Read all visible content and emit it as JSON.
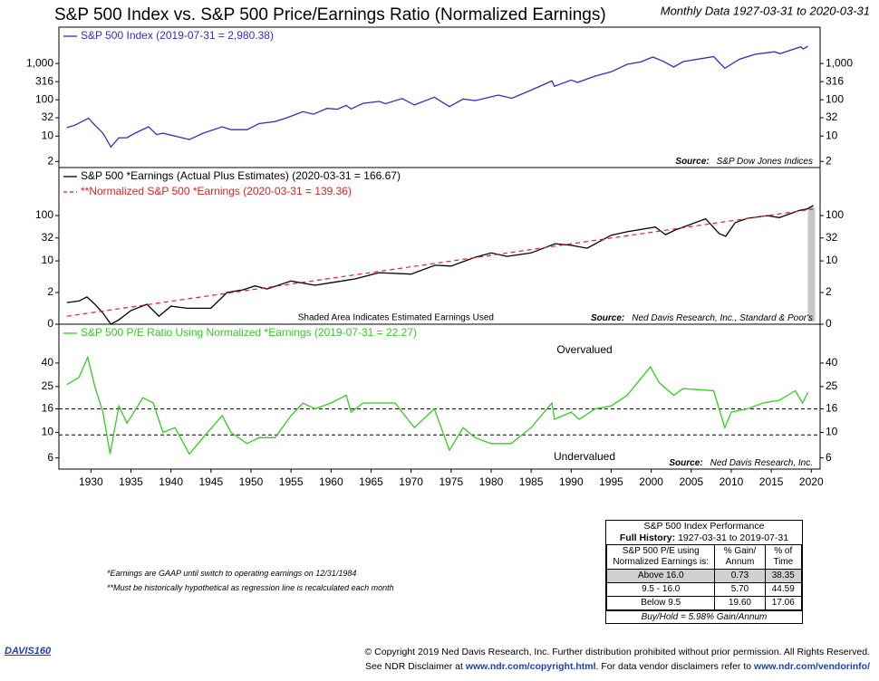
{
  "title": "S&P 500 Index vs. S&P 500 Price/Earnings Ratio (Normalized Earnings)",
  "subtitle": "Monthly Data 1927-03-31 to 2020-03-31",
  "chart_data": [
    {
      "type": "line",
      "log_y": true,
      "x": [
        1927,
        1928,
        1929.7,
        1930.5,
        1931.5,
        1932.5,
        1933.5,
        1934.5,
        1935.5,
        1937.2,
        1938.2,
        1939,
        1940.5,
        1942.3,
        1944,
        1946.4,
        1947.5,
        1949.5,
        1951,
        1953,
        1954.5,
        1956.5,
        1957.8,
        1959.5,
        1960.8,
        1961.9,
        1962.5,
        1964,
        1966,
        1966.8,
        1968.9,
        1970.4,
        1972.9,
        1974.8,
        1976.5,
        1978,
        1980.9,
        1982.6,
        1985,
        1987.6,
        1987.9,
        1990,
        1990.8,
        1993,
        1995,
        1997,
        1998.7,
        2000.2,
        2001.5,
        2002.8,
        2004,
        2007.8,
        2009.2,
        2011,
        2013,
        2015.4,
        2016.1,
        2018.7,
        2018.98,
        2019.58
      ],
      "series": [
        {
          "name": "S&P 500 Index (2019-07-31 = 2,980.38)",
          "color": "#2b2fc4",
          "values": [
            17,
            20,
            31,
            20,
            12,
            5,
            9,
            9,
            12,
            18,
            11,
            12,
            10,
            8,
            12,
            18,
            15,
            15,
            22,
            25,
            32,
            47,
            40,
            58,
            55,
            70,
            56,
            80,
            90,
            78,
            108,
            72,
            118,
            65,
            105,
            95,
            135,
            110,
            185,
            330,
            235,
            350,
            300,
            450,
            590,
            950,
            1100,
            1500,
            1150,
            800,
            1130,
            1550,
            735,
            1300,
            1800,
            2100,
            1860,
            2900,
            2500,
            2980.38
          ]
        }
      ],
      "xlim": [
        1926,
        2021.1
      ],
      "ylim": [
        1.36,
        10000
      ],
      "yticks": [
        2,
        10,
        32,
        100,
        316,
        {
          "value": 1000,
          "label": "1,000"
        }
      ],
      "source": {
        "label": "Source:",
        "text": "S&P Dow Jones Indices"
      }
    },
    {
      "type": "line",
      "log_y": true,
      "series": [
        {
          "name": "S&P 500 *Earnings (Actual Plus Estimates) (2020-03-31 = 166.67)",
          "color": "#000000",
          "x": [
            1927,
            1928.5,
            1929.5,
            1930.5,
            1931.5,
            1932.5,
            1933.5,
            1935,
            1937,
            1938.5,
            1940,
            1942,
            1945,
            1947,
            1949,
            1950.5,
            1952,
            1955,
            1958,
            1960,
            1963,
            1966,
            1970,
            1973,
            1975,
            1978,
            1980,
            1982,
            1985,
            1988,
            1990,
            1992,
            1995,
            1997,
            2000.5,
            2001.8,
            2003,
            2006.8,
            2008.5,
            2009.3,
            2010.5,
            2012,
            2014.5,
            2016,
            2018.5,
            2019.5,
            2020.25
          ],
          "values": [
            1.2,
            1.3,
            1.6,
            1.1,
            0.7,
            0.4,
            0.5,
            0.8,
            1.1,
            0.6,
            1.0,
            0.9,
            0.9,
            2,
            2.3,
            2.8,
            2.4,
            3.6,
            2.9,
            3.3,
            4,
            5.5,
            5.1,
            8,
            7.7,
            12,
            15,
            12.6,
            15,
            24,
            22,
            19,
            37,
            44,
            56,
            38,
            48,
            85,
            40,
            35,
            70,
            87,
            100,
            90,
            130,
            140,
            166.67
          ]
        },
        {
          "name": "**Normalized S&P 500 *Earnings (2020-03-31 = 139.36)",
          "color": "#e02020",
          "dash": true,
          "x": [
            1927,
            2020.25
          ],
          "values": [
            0.6,
            139.36
          ]
        }
      ],
      "xlim": [
        1926,
        2021.1
      ],
      "ylim": [
        0.4,
        1150
      ],
      "yticks": [
        {
          "value": 0.4,
          "label": "0"
        },
        2,
        10,
        32,
        100
      ],
      "shaded_range": [
        2019.58,
        2020.25
      ],
      "annotation": "Shaded Area Indicates Estimated Earnings Used",
      "source": {
        "label": "Source:",
        "text": "Ned Davis Research, Inc., Standard & Poor's"
      }
    },
    {
      "type": "line",
      "log_y": true,
      "x": [
        1927,
        1928.5,
        1929.6,
        1930.5,
        1931.5,
        1932.4,
        1933.5,
        1934.5,
        1936.5,
        1937.8,
        1939,
        1940.5,
        1942.3,
        1944,
        1946.4,
        1947.5,
        1949.5,
        1951,
        1953,
        1955,
        1956.5,
        1958,
        1960,
        1961.9,
        1962.5,
        1964,
        1966,
        1968,
        1970.4,
        1972.9,
        1974.8,
        1976.5,
        1978,
        1980,
        1982.5,
        1985,
        1987.6,
        1987.9,
        1990,
        1991,
        1993,
        1995,
        1997,
        1999.9,
        2001,
        2002.8,
        2004,
        2007.8,
        2009.2,
        2010,
        2012,
        2014,
        2016,
        2018,
        2018.9,
        2019.58
      ],
      "series": [
        {
          "name": "S&P 500 P/E Ratio Using Normalized *Earnings (2019-07-31 = 22.27)",
          "color": "#33cc22",
          "values": [
            26,
            30,
            45,
            25,
            15,
            6.5,
            17,
            12,
            20,
            18,
            10,
            11,
            6.5,
            9,
            14,
            10,
            8,
            9,
            9,
            14,
            18,
            16,
            18,
            21,
            15,
            18,
            18,
            18,
            11,
            16,
            7,
            11,
            9,
            8,
            8,
            11,
            18,
            13,
            15,
            13,
            16,
            17,
            21,
            37,
            27,
            21,
            24,
            23,
            11,
            15,
            16,
            18,
            19,
            23,
            18,
            22.27
          ]
        }
      ],
      "xlim": [
        1926,
        2021.1
      ],
      "ylim": [
        4.8,
        87
      ],
      "yticks": [
        6,
        10,
        16,
        25,
        40
      ],
      "xticks": [
        1930,
        1935,
        1940,
        1945,
        1950,
        1955,
        1960,
        1965,
        1970,
        1975,
        1980,
        1985,
        1990,
        1995,
        2000,
        2005,
        2010,
        2015,
        2020
      ],
      "hlines": [
        16,
        9.5
      ],
      "annotations": [
        "Overvalued",
        "Undervalued"
      ],
      "source": {
        "label": "Source:",
        "text": "Ned Davis Research, Inc."
      }
    }
  ],
  "table": {
    "title": "S&P 500 Index Performance",
    "history_label": "Full History:",
    "history": "1927-03-31 to 2019-07-31",
    "header": [
      "S&P 500 P/E using Normalized Earnings is:",
      "% Gain/ Annum",
      "% of Time"
    ],
    "rows": [
      [
        "Above 16.0",
        "0.73",
        "38.35"
      ],
      [
        "9.5 - 16.0",
        "5.70",
        "44.59"
      ],
      [
        "Below 9.5",
        "19.60",
        "17.06"
      ]
    ],
    "footer": "Buy/Hold = 5.98% Gain/Annum"
  },
  "notes": [
    "*Earnings are GAAP until switch to operating earnings on 12/31/1984",
    "**Must be historically hypothetical as regression line is recalculated each month"
  ],
  "footer": {
    "code": "DAVIS160",
    "copyright": "© Copyright 2019 Ned Davis Research, Inc. Further distribution prohibited without prior permission. All Rights Reserved.",
    "line2": [
      "See NDR Disclaimer at ",
      "www.ndr.com/copyright.html",
      ". For data vendor disclaimers refer to ",
      "www.ndr.com/vendorinfo/"
    ]
  }
}
